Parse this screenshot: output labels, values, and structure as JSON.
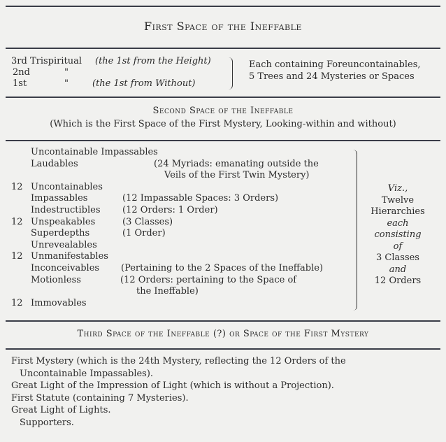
{
  "section1": {
    "heading": "First Space of the Ineffable",
    "rows": [
      {
        "label": "3rd Trispiritual",
        "note": "(the 1st from the Height)"
      },
      {
        "label": "2nd",
        "note": "\""
      },
      {
        "label": "1st",
        "note": "\"",
        "note2": "(the 1st from Without)"
      }
    ],
    "summary_line1": "Each containing Foreuncontainables,",
    "summary_line2": "5 Trees and 24 Mysteries or Spaces"
  },
  "section2": {
    "heading": "Second Space of the Ineffable",
    "subheading": "(Which is the First Space of the First Mystery, Looking-within and without)",
    "rows": [
      {
        "num": "",
        "label": "Uncontainable Impassables",
        "note": ""
      },
      {
        "num": "",
        "label": "Laudables",
        "note": "(24 Myriads: emanating outside the"
      },
      {
        "num": "",
        "label": "",
        "note": "Veils of the First Twin Mystery)"
      },
      {
        "num": "12",
        "label": "Uncontainables",
        "note": ""
      },
      {
        "num": "",
        "label": "Impassables",
        "note": "(12 Impassable Spaces: 3 Orders)"
      },
      {
        "num": "",
        "label": "Indestructibles",
        "note": "(12 Orders: 1 Order)"
      },
      {
        "num": "12",
        "label": "Unspeakables",
        "note": "(3 Classes)"
      },
      {
        "num": "",
        "label": "Superdepths",
        "note": "(1 Order)"
      },
      {
        "num": "",
        "label": "Unrevealables",
        "note": ""
      },
      {
        "num": "12",
        "label": "Unmanifestables",
        "note": ""
      },
      {
        "num": "",
        "label": "Inconceivables",
        "note": "(Pertaining to the 2 Spaces of the Ineffable)"
      },
      {
        "num": "",
        "label": "Motionless",
        "note": "(12 Orders: pertaining to the Space of"
      },
      {
        "num": "",
        "label": "",
        "note": "the Ineffable)"
      },
      {
        "num": "12",
        "label": "Immovables",
        "note": ""
      }
    ],
    "summary": [
      "Viz.,",
      "Twelve",
      "Hierarchies",
      "each",
      "consisting",
      "of",
      "3 Classes",
      "and",
      "12 Orders"
    ]
  },
  "section3": {
    "heading": "Third Space of the Ineffable (?) or Space of the First Mystery",
    "lines": [
      "First Mystery (which is the 24th Mystery, reflecting the 12 Orders of the",
      "Uncontainable Impassables).",
      "Great Light of the Impression of Light (which is without a Projection).",
      "First Statute (containing 7 Mysteries).",
      "Great Light of Lights.",
      "Supporters."
    ]
  }
}
